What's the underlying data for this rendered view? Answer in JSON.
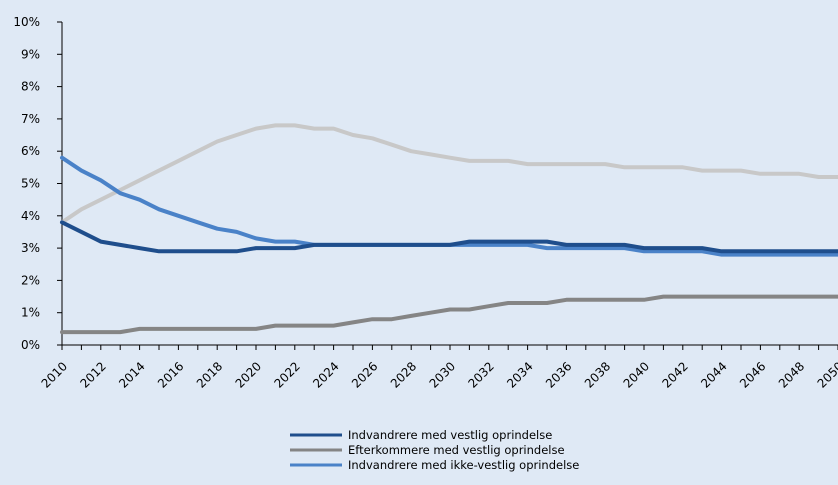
{
  "chart_data": {
    "type": "line",
    "title": "",
    "xlabel": "",
    "ylabel": "",
    "x": [
      2010,
      2011,
      2012,
      2013,
      2014,
      2015,
      2016,
      2017,
      2018,
      2019,
      2020,
      2021,
      2022,
      2023,
      2024,
      2025,
      2026,
      2027,
      2028,
      2029,
      2030,
      2031,
      2032,
      2033,
      2034,
      2035,
      2036,
      2037,
      2038,
      2039,
      2040,
      2041,
      2042,
      2043,
      2044,
      2045,
      2046,
      2047,
      2048,
      2049,
      2050
    ],
    "x_tick_labels": [
      "2010",
      "2012",
      "2014",
      "2016",
      "2018",
      "2020",
      "2022",
      "2024",
      "2026",
      "2028",
      "2030",
      "2032",
      "2034",
      "2036",
      "2038",
      "2040",
      "2042",
      "2044",
      "2046",
      "2048",
      "2050"
    ],
    "y_tick_labels": [
      "0%",
      "1%",
      "2%",
      "3%",
      "4%",
      "5%",
      "6%",
      "7%",
      "8%",
      "9%",
      "10%"
    ],
    "ylim": [
      0,
      10
    ],
    "xlim": [
      2010,
      2050
    ],
    "grid": false,
    "legend_position": "bottom",
    "series": [
      {
        "name": "Indvandrere med vestlig oprindelse",
        "color": "#1f4e8c",
        "values": [
          3.8,
          3.5,
          3.2,
          3.1,
          3.0,
          2.9,
          2.9,
          2.9,
          2.9,
          2.9,
          3.0,
          3.0,
          3.0,
          3.1,
          3.1,
          3.1,
          3.1,
          3.1,
          3.1,
          3.1,
          3.1,
          3.2,
          3.2,
          3.2,
          3.2,
          3.2,
          3.1,
          3.1,
          3.1,
          3.1,
          3.0,
          3.0,
          3.0,
          3.0,
          2.9,
          2.9,
          2.9,
          2.9,
          2.9,
          2.9,
          2.9
        ]
      },
      {
        "name": "Efterkommere med vestlig oprindelse",
        "color": "#858585",
        "values": [
          0.4,
          0.4,
          0.4,
          0.4,
          0.5,
          0.5,
          0.5,
          0.5,
          0.5,
          0.5,
          0.5,
          0.6,
          0.6,
          0.6,
          0.6,
          0.7,
          0.8,
          0.8,
          0.9,
          1.0,
          1.1,
          1.1,
          1.2,
          1.3,
          1.3,
          1.3,
          1.4,
          1.4,
          1.4,
          1.4,
          1.4,
          1.5,
          1.5,
          1.5,
          1.5,
          1.5,
          1.5,
          1.5,
          1.5,
          1.5,
          1.5
        ]
      },
      {
        "name": "Indvandrere med ikke-vestlig oprindelse",
        "color": "#4a82c8",
        "values": [
          5.8,
          5.4,
          5.1,
          4.7,
          4.5,
          4.2,
          4.0,
          3.8,
          3.6,
          3.5,
          3.3,
          3.2,
          3.2,
          3.1,
          3.1,
          3.1,
          3.1,
          3.1,
          3.1,
          3.1,
          3.1,
          3.1,
          3.1,
          3.1,
          3.1,
          3.0,
          3.0,
          3.0,
          3.0,
          3.0,
          2.9,
          2.9,
          2.9,
          2.9,
          2.8,
          2.8,
          2.8,
          2.8,
          2.8,
          2.8,
          2.8
        ]
      },
      {
        "name": "",
        "color": "#c8c8c8",
        "values": [
          3.8,
          4.2,
          4.5,
          4.8,
          5.1,
          5.4,
          5.7,
          6.0,
          6.3,
          6.5,
          6.7,
          6.8,
          6.8,
          6.7,
          6.7,
          6.5,
          6.4,
          6.2,
          6.0,
          5.9,
          5.8,
          5.7,
          5.7,
          5.7,
          5.6,
          5.6,
          5.6,
          5.6,
          5.6,
          5.5,
          5.5,
          5.5,
          5.5,
          5.4,
          5.4,
          5.4,
          5.3,
          5.3,
          5.3,
          5.2,
          5.2
        ]
      }
    ]
  }
}
